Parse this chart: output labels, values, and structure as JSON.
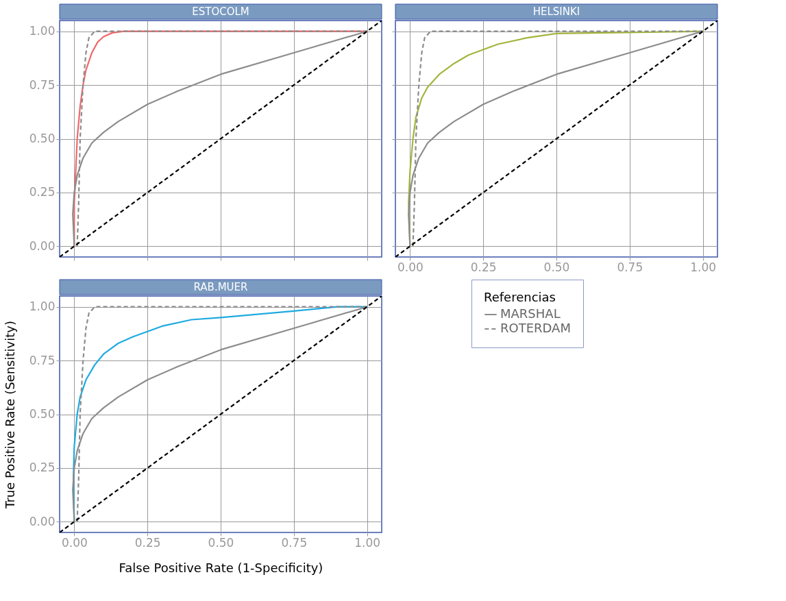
{
  "chart_data": [
    {
      "type": "line",
      "title": "ESTOCOLM",
      "xlim": [
        -0.05,
        1.05
      ],
      "ylim": [
        -0.05,
        1.05
      ],
      "xticks": [
        0,
        0.25,
        0.5,
        0.75,
        1
      ],
      "yticks": [
        {
          "value": 0,
          "label": "0.00"
        },
        {
          "value": 0.25,
          "label": "0.25"
        },
        {
          "value": 0.5,
          "label": "0.50"
        },
        {
          "value": 0.75,
          "label": "0.75"
        },
        {
          "value": 1,
          "label": "1.00"
        }
      ],
      "grid": true,
      "legend": false,
      "tick_labels": "y",
      "series": [
        {
          "type": "line",
          "color": "#f0686a",
          "line_style": "solid",
          "x": [
            0,
            0,
            0.005,
            0.01,
            0.02,
            0.03,
            0.04,
            0.06,
            0.08,
            0.1,
            0.13,
            0.17,
            1
          ],
          "values": [
            0,
            0.2,
            0.35,
            0.5,
            0.65,
            0.75,
            0.82,
            0.9,
            0.95,
            0.975,
            0.993,
            1,
            1
          ]
        },
        {
          "type": "line",
          "color": "#8c8c8c",
          "line_style": "solid",
          "x": [
            0,
            -0.005,
            0,
            0.01,
            0.03,
            0.06,
            0.1,
            0.15,
            0.25,
            0.35,
            0.5,
            0.75,
            1
          ],
          "values": [
            0,
            0.15,
            0.25,
            0.33,
            0.41,
            0.48,
            0.53,
            0.58,
            0.66,
            0.72,
            0.8,
            0.9,
            1
          ]
        },
        {
          "type": "line",
          "color": "#8c8c8c",
          "line_style": "dashed",
          "x": [
            0.01,
            0.015,
            0.02,
            0.03,
            0.04,
            0.05,
            0.07,
            1
          ],
          "values": [
            0,
            0.2,
            0.5,
            0.75,
            0.9,
            0.97,
            1,
            1
          ]
        },
        {
          "type": "line",
          "color": "#000000",
          "line_style": "dashed",
          "x": [
            -0.05,
            1.05
          ],
          "values": [
            -0.05,
            1.05
          ]
        }
      ]
    },
    {
      "type": "line",
      "title": "HELSINKI",
      "xlim": [
        -0.05,
        1.05
      ],
      "ylim": [
        -0.05,
        1.05
      ],
      "xticks": [
        {
          "value": 0,
          "label": "0.00"
        },
        {
          "value": 0.25,
          "label": "0.25"
        },
        {
          "value": 0.5,
          "label": "0.50"
        },
        {
          "value": 0.75,
          "label": "0.75"
        },
        {
          "value": 1,
          "label": "1.00"
        }
      ],
      "yticks": [
        0,
        0.25,
        0.5,
        0.75,
        1
      ],
      "grid": true,
      "legend": false,
      "tick_labels": "x",
      "series": [
        {
          "type": "line",
          "color": "#a4b43c",
          "line_style": "solid",
          "x": [
            0,
            -0.005,
            0,
            0.01,
            0.02,
            0.04,
            0.06,
            0.1,
            0.15,
            0.2,
            0.3,
            0.4,
            0.5,
            1
          ],
          "values": [
            0,
            0.2,
            0.35,
            0.5,
            0.6,
            0.69,
            0.74,
            0.8,
            0.85,
            0.89,
            0.94,
            0.97,
            0.99,
            1
          ]
        },
        {
          "type": "line",
          "color": "#8c8c8c",
          "line_style": "solid",
          "x": [
            0,
            -0.005,
            0,
            0.01,
            0.03,
            0.06,
            0.1,
            0.15,
            0.25,
            0.35,
            0.5,
            0.75,
            1
          ],
          "values": [
            0,
            0.15,
            0.25,
            0.33,
            0.41,
            0.48,
            0.53,
            0.58,
            0.66,
            0.72,
            0.8,
            0.9,
            1
          ]
        },
        {
          "type": "line",
          "color": "#8c8c8c",
          "line_style": "dashed",
          "x": [
            0.01,
            0.015,
            0.02,
            0.03,
            0.04,
            0.05,
            0.07,
            1
          ],
          "values": [
            0,
            0.2,
            0.5,
            0.75,
            0.9,
            0.97,
            1,
            1
          ]
        },
        {
          "type": "line",
          "color": "#000000",
          "line_style": "dashed",
          "x": [
            -0.05,
            1.05
          ],
          "values": [
            -0.05,
            1.05
          ]
        }
      ]
    },
    {
      "type": "line",
      "title": "RAB.MUER",
      "xlabel": "False Positive Rate (1-Specificity)",
      "ylabel": "True Positive Rate (Sensitivity)",
      "legend_title": "Referencias",
      "xlim": [
        -0.05,
        1.05
      ],
      "ylim": [
        -0.05,
        1.05
      ],
      "xticks": [
        {
          "value": 0,
          "label": "0.00"
        },
        {
          "value": 0.25,
          "label": "0.25"
        },
        {
          "value": 0.5,
          "label": "0.50"
        },
        {
          "value": 0.75,
          "label": "0.75"
        },
        {
          "value": 1,
          "label": "1.00"
        }
      ],
      "yticks": [
        {
          "value": 0,
          "label": "0.00"
        },
        {
          "value": 0.25,
          "label": "0.25"
        },
        {
          "value": 0.5,
          "label": "0.50"
        },
        {
          "value": 0.75,
          "label": "0.75"
        },
        {
          "value": 1,
          "label": "1.00"
        }
      ],
      "grid": true,
      "legend": "right",
      "series": [
        {
          "type": "line",
          "color": "#1eaadf",
          "line_style": "solid",
          "x": [
            0,
            -0.003,
            0,
            0.01,
            0.02,
            0.04,
            0.07,
            0.1,
            0.15,
            0.2,
            0.3,
            0.4,
            0.5,
            0.75,
            0.9,
            1
          ],
          "values": [
            0,
            0.2,
            0.35,
            0.5,
            0.58,
            0.66,
            0.73,
            0.78,
            0.83,
            0.86,
            0.91,
            0.94,
            0.95,
            0.98,
            1,
            1
          ]
        },
        {
          "type": "line",
          "name": "MARSHAL",
          "color": "#8c8c8c",
          "line_style": "solid",
          "x": [
            0,
            -0.005,
            0,
            0.01,
            0.03,
            0.06,
            0.1,
            0.15,
            0.25,
            0.35,
            0.5,
            0.75,
            1
          ],
          "values": [
            0,
            0.15,
            0.25,
            0.33,
            0.41,
            0.48,
            0.53,
            0.58,
            0.66,
            0.72,
            0.8,
            0.9,
            1
          ]
        },
        {
          "type": "line",
          "name": "ROTERDAM",
          "color": "#8c8c8c",
          "line_style": "dashed",
          "x": [
            0.01,
            0.015,
            0.02,
            0.03,
            0.04,
            0.05,
            0.07,
            1
          ],
          "values": [
            0,
            0.2,
            0.5,
            0.75,
            0.9,
            0.97,
            1,
            1
          ]
        },
        {
          "type": "line",
          "color": "#000000",
          "line_style": "dashed",
          "x": [
            -0.05,
            1.05
          ],
          "values": [
            -0.05,
            1.05
          ]
        }
      ]
    }
  ]
}
